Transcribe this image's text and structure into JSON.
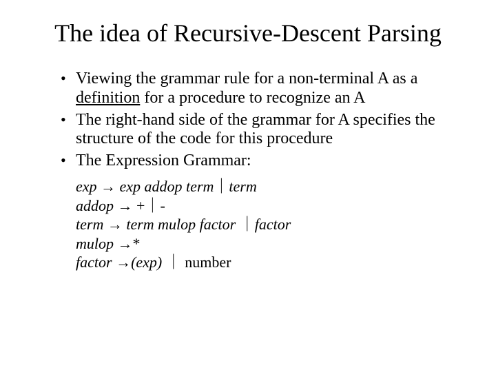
{
  "title": "The idea of Recursive-Descent Parsing",
  "bullets": {
    "b1_pre": "Viewing the grammar rule for a non-terminal A as a ",
    "b1_def": "definition",
    "b1_post": " for a procedure to recognize an A",
    "b2": "The right-hand side of the grammar for A specifies the structure of the code for this procedure",
    "b3": "The Expression Grammar:"
  },
  "grammar": {
    "l1_a": "exp ",
    "l1_arrow": "→ ",
    "l1_b": "exp addop term",
    "l1_bar": "｜",
    "l1_c": "term",
    "l2_a": "addop ",
    "l2_arrow": "→ ",
    "l2_b": "+",
    "l2_bar": "｜",
    "l2_c": "-",
    "l3_a": "term ",
    "l3_arrow": "→ ",
    "l3_b": "term mulop factor",
    "l3_bar": " ｜",
    "l3_c": "factor",
    "l4_a": "mulop ",
    "l4_arrow": "→",
    "l4_b": "*",
    "l5_a": "factor ",
    "l5_arrow": "→",
    "l5_b": "(exp)",
    "l5_bar": " ｜",
    "l5_c": " number"
  },
  "style": {
    "background_color": "#ffffff",
    "text_color": "#000000",
    "title_fontsize": 36,
    "body_fontsize": 24,
    "grammar_fontsize": 22,
    "font_family": "Times New Roman"
  }
}
